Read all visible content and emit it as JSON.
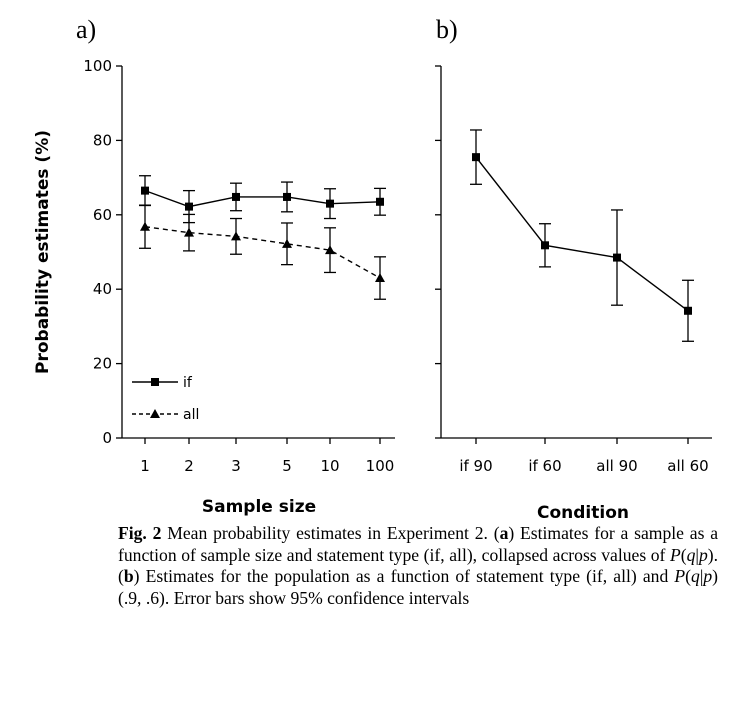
{
  "chart_data": [
    {
      "panel_label": "a)",
      "type": "line",
      "xlabel": "Sample size",
      "ylabel": "Probability estimates (%)",
      "categories": [
        "1",
        "2",
        "3",
        "5",
        "10",
        "100"
      ],
      "ylim": [
        0,
        100
      ],
      "yticks": [
        0,
        20,
        40,
        60,
        80,
        100
      ],
      "grid": false,
      "legend_position": "bottom-left",
      "series": [
        {
          "name": "if",
          "marker": "square",
          "line_style": "solid",
          "values": [
            66.5,
            62.2,
            64.8,
            64.8,
            63.0,
            63.5
          ],
          "error": [
            4.0,
            4.3,
            3.7,
            4.0,
            4.0,
            3.6
          ]
        },
        {
          "name": "all",
          "marker": "triangle",
          "line_style": "dashed",
          "values": [
            56.8,
            55.2,
            54.2,
            52.2,
            50.5,
            43.0
          ],
          "error": [
            5.8,
            4.9,
            4.8,
            5.6,
            6.0,
            5.7
          ]
        }
      ]
    },
    {
      "panel_label": "b)",
      "type": "line",
      "xlabel": "Condition",
      "categories": [
        "if 90",
        "if 60",
        "all 90",
        "all 60"
      ],
      "ylim": [
        0,
        100
      ],
      "grid": false,
      "series": [
        {
          "marker": "square",
          "line_style": "solid",
          "values": [
            75.5,
            51.8,
            48.5,
            34.2
          ],
          "error": [
            7.3,
            5.8,
            12.8,
            8.2
          ]
        }
      ]
    }
  ],
  "caption": {
    "fig_label": "Fig. 2",
    "t1": "  Mean probability estimates in Experiment 2. (",
    "a": "a",
    "t2": ") Estimates for a sample as a function of sample size and statement type (if, all), collapsed across values of ",
    "P1": "P",
    "t3": "(",
    "q1": "q",
    "t4": "|",
    "p1": "p",
    "t5": "). (",
    "b": "b",
    "t6": ") Estimates for the population as a function of statement type (if, all) and ",
    "P2": "P",
    "t7": "(",
    "q2": "q",
    "t8": "|",
    "p2": "p",
    "t9": ") (.9, .6). Error bars show 95% confidence intervals"
  }
}
